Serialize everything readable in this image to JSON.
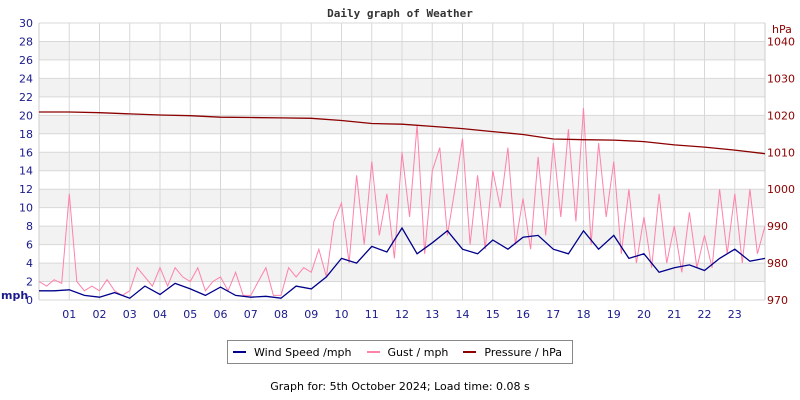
{
  "chart_data": {
    "type": "line",
    "title": "Daily graph of Weather",
    "left_axis": {
      "label": "mph",
      "range": [
        0,
        30
      ],
      "ticks": [
        0,
        2,
        4,
        6,
        8,
        10,
        12,
        14,
        16,
        18,
        20,
        22,
        24,
        26,
        28,
        30
      ],
      "color": "#1a1a8c"
    },
    "right_axis": {
      "label": "hPa",
      "range": [
        970,
        1045
      ],
      "ticks": [
        970,
        980,
        990,
        1000,
        1010,
        1020,
        1030,
        1040
      ],
      "color": "#8b0000"
    },
    "x_axis": {
      "range": [
        0,
        24
      ],
      "tick_labels": [
        "01",
        "02",
        "03",
        "04",
        "05",
        "06",
        "07",
        "08",
        "09",
        "10",
        "11",
        "12",
        "13",
        "14",
        "15",
        "16",
        "17",
        "18",
        "19",
        "20",
        "21",
        "22",
        "23"
      ]
    },
    "grid": true,
    "legend_placement": "bottom",
    "series": [
      {
        "name": "Wind Speed /mph",
        "color": "#00008b",
        "axis": "left",
        "x_step_hours": 0.5,
        "values": [
          1,
          1,
          1.1,
          0.5,
          0.3,
          0.8,
          0.2,
          1.5,
          0.6,
          1.8,
          1.2,
          0.5,
          1.4,
          0.5,
          0.3,
          0.4,
          0.2,
          1.5,
          1.2,
          2.5,
          4.5,
          4,
          5.8,
          5.2,
          7.8,
          5,
          6.2,
          7.5,
          5.5,
          5,
          6.5,
          5.5,
          6.8,
          7,
          5.5,
          5,
          7.5,
          5.5,
          7,
          4.5,
          5,
          3,
          3.5,
          3.8,
          3.2,
          4.5,
          5.5,
          4.2,
          4.5
        ]
      },
      {
        "name": "Gust / mph",
        "color": "#ff82a9",
        "axis": "left",
        "x_step_hours": 0.25,
        "values": [
          2,
          1.5,
          2.2,
          1.8,
          11.5,
          2,
          1,
          1.5,
          1,
          2.2,
          1,
          0.5,
          1,
          3.5,
          2.5,
          1.5,
          3.5,
          1.5,
          3.5,
          2.5,
          2,
          3.5,
          1,
          2,
          2.5,
          1,
          3,
          0.5,
          0.5,
          2,
          3.5,
          0.5,
          0.5,
          3.5,
          2.5,
          3.5,
          3,
          5.5,
          2.5,
          8.5,
          10.5,
          4,
          13.5,
          6,
          15,
          7,
          11.5,
          4.5,
          16,
          9,
          19,
          5,
          14,
          16.5,
          7,
          12,
          17.5,
          6,
          13.5,
          5.5,
          14,
          10,
          16.5,
          6,
          11,
          5.5,
          15.5,
          7,
          17,
          9,
          18.5,
          8.5,
          20.8,
          6,
          17,
          9,
          15,
          5,
          12,
          4,
          9,
          3.5,
          11.5,
          4,
          8,
          3,
          9.5,
          3.5,
          7,
          3.5,
          12,
          5,
          11.5,
          4,
          12,
          5,
          8
        ]
      },
      {
        "name": "Pressure / hPa",
        "color": "#8b0000",
        "axis": "right",
        "x_step_hours": 1,
        "values": [
          1020.9,
          1020.9,
          1020.7,
          1020.4,
          1020.1,
          1019.9,
          1019.5,
          1019.4,
          1019.3,
          1019.2,
          1018.6,
          1017.8,
          1017.6,
          1017,
          1016.4,
          1015.6,
          1014.8,
          1013.6,
          1013.4,
          1013.3,
          1012.9,
          1012,
          1011.4,
          1010.6,
          1009.6
        ]
      }
    ]
  },
  "footer": "Graph for: 5th October 2024; Load time: 0.08 s"
}
